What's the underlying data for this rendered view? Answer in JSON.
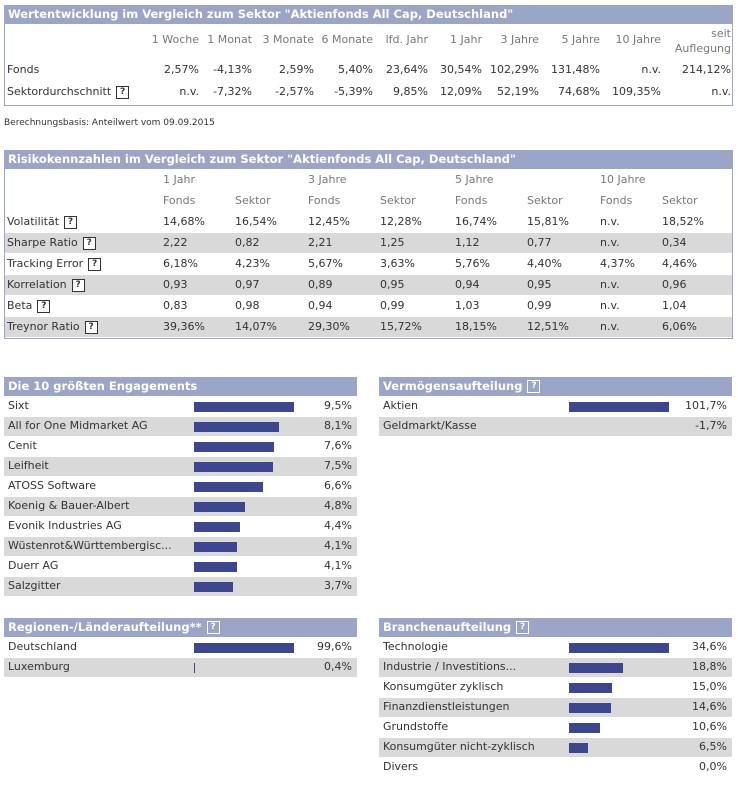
{
  "help": "?",
  "performance": {
    "title": "Wertentwicklung im Vergleich zum Sektor \"Aktienfonds All Cap, Deutschland\"",
    "headers": [
      "1 Woche",
      "1 Monat",
      "3 Monate",
      "6 Monate",
      "lfd. Jahr",
      "1 Jahr",
      "3 Jahre",
      "5 Jahre",
      "10 Jahre",
      "seit Auflegung"
    ],
    "rows": [
      {
        "label": "Fonds",
        "help": false,
        "cells": [
          "2,57%",
          "-4,13%",
          "2,59%",
          "5,40%",
          "23,64%",
          "30,54%",
          "102,29%",
          "131,48%",
          "n.v.",
          "214,12%"
        ]
      },
      {
        "label": "Sektordurchschnitt",
        "help": true,
        "cells": [
          "n.v.",
          "-7,32%",
          "-2,57%",
          "-5,39%",
          "9,85%",
          "12,09%",
          "52,19%",
          "74,68%",
          "109,35%",
          "n.v."
        ]
      }
    ],
    "note": "Berechnungsbasis: Anteilwert vom 09.09.2015"
  },
  "risk": {
    "title": "Risikokennzahlen im Vergleich zum Sektor \"Aktienfonds All Cap, Deutschland\"",
    "periods": [
      "1 Jahr",
      "3 Jahre",
      "5 Jahre",
      "10 Jahre"
    ],
    "subheaders": [
      "Fonds",
      "Sektor",
      "Fonds",
      "Sektor",
      "Fonds",
      "Sektor",
      "Fonds",
      "Sektor"
    ],
    "rows": [
      {
        "label": "Volatilität",
        "cells": [
          "14,68%",
          "16,54%",
          "12,45%",
          "12,28%",
          "16,74%",
          "15,81%",
          "n.v.",
          "18,52%"
        ]
      },
      {
        "label": "Sharpe Ratio",
        "cells": [
          "2,22",
          "0,82",
          "2,21",
          "1,25",
          "1,12",
          "0,77",
          "n.v.",
          "0,34"
        ]
      },
      {
        "label": "Tracking Error",
        "cells": [
          "6,18%",
          "4,23%",
          "5,67%",
          "3,63%",
          "5,76%",
          "4,40%",
          "4,37%",
          "4,46%"
        ]
      },
      {
        "label": "Korrelation",
        "cells": [
          "0,93",
          "0,97",
          "0,89",
          "0,95",
          "0,94",
          "0,95",
          "n.v.",
          "0,96"
        ]
      },
      {
        "label": "Beta",
        "cells": [
          "0,83",
          "0,98",
          "0,94",
          "0,99",
          "1,03",
          "0,99",
          "n.v.",
          "1,04"
        ]
      },
      {
        "label": "Treynor Ratio",
        "cells": [
          "39,36%",
          "14,07%",
          "29,30%",
          "15,72%",
          "18,15%",
          "12,51%",
          "n.v.",
          "6,06%"
        ]
      }
    ]
  },
  "holdings": {
    "title": "Die 10 größten Engagements",
    "help": false,
    "items": [
      {
        "name": "Sixt",
        "value": 9.5,
        "label": "9,5%"
      },
      {
        "name": "All for One Midmarket AG",
        "value": 8.1,
        "label": "8,1%"
      },
      {
        "name": "Cenit",
        "value": 7.6,
        "label": "7,6%"
      },
      {
        "name": "Leifheit",
        "value": 7.5,
        "label": "7,5%"
      },
      {
        "name": "ATOSS Software",
        "value": 6.6,
        "label": "6,6%"
      },
      {
        "name": "Koenig & Bauer-Albert",
        "value": 4.8,
        "label": "4,8%"
      },
      {
        "name": "Evonik Industries AG",
        "value": 4.4,
        "label": "4,4%"
      },
      {
        "name": "Wüstenrot&Württembergisc...",
        "value": 4.1,
        "label": "4,1%"
      },
      {
        "name": "Duerr AG",
        "value": 4.1,
        "label": "4,1%"
      },
      {
        "name": "Salzgitter",
        "value": 3.7,
        "label": "3,7%"
      }
    ]
  },
  "assets": {
    "title": "Vermögensaufteilung",
    "help": true,
    "items": [
      {
        "name": "Aktien",
        "value": 101.7,
        "label": "101,7%"
      },
      {
        "name": "Geldmarkt/Kasse",
        "value": -1.7,
        "label": "-1,7%"
      }
    ]
  },
  "regions": {
    "title": "Regionen-/Länderaufteilung**",
    "help": true,
    "items": [
      {
        "name": "Deutschland",
        "value": 99.6,
        "label": "99,6%"
      },
      {
        "name": "Luxemburg",
        "value": 0.4,
        "label": "0,4%"
      }
    ]
  },
  "sectors": {
    "title": "Branchenaufteilung",
    "help": true,
    "items": [
      {
        "name": "Technologie",
        "value": 34.6,
        "label": "34,6%"
      },
      {
        "name": "Industrie / Investitions...",
        "value": 18.8,
        "label": "18,8%"
      },
      {
        "name": "Konsumgüter zyklisch",
        "value": 15.0,
        "label": "15,0%"
      },
      {
        "name": "Finanzdienstleistungen",
        "value": 14.6,
        "label": "14,6%"
      },
      {
        "name": "Grundstoffe",
        "value": 10.6,
        "label": "10,6%"
      },
      {
        "name": "Konsumgüter nicht-zyklisch",
        "value": 6.5,
        "label": "6,5%"
      },
      {
        "name": "Divers",
        "value": 0.0,
        "label": "0,0%"
      }
    ]
  }
}
